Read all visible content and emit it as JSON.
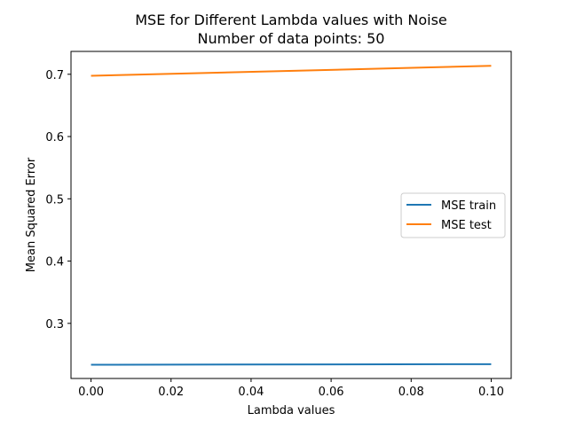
{
  "chart_data": {
    "type": "line",
    "title": "MSE for Different Lambda values with Noise",
    "subtitle": "Number of data points: 50",
    "xlabel": "Lambda values",
    "ylabel": "Mean Squared Error",
    "xlim": [
      -0.005,
      0.105
    ],
    "ylim": [
      0.2115,
      0.7367
    ],
    "xticks": [
      0.0,
      0.02,
      0.04,
      0.06,
      0.08,
      0.1
    ],
    "xtick_labels": [
      "0.00",
      "0.02",
      "0.04",
      "0.06",
      "0.08",
      "0.10"
    ],
    "yticks": [
      0.3,
      0.4,
      0.5,
      0.6,
      0.7
    ],
    "ytick_labels": [
      "0.3",
      "0.4",
      "0.5",
      "0.6",
      "0.7"
    ],
    "grid": false,
    "legend_position": "center-right",
    "series": [
      {
        "name": "MSE train",
        "color": "#1f77b4",
        "x": [
          0.0,
          0.1
        ],
        "y": [
          0.2335,
          0.2345
        ]
      },
      {
        "name": "MSE test",
        "color": "#ff7f0e",
        "x": [
          0.0,
          0.1
        ],
        "y": [
          0.6975,
          0.7135
        ]
      }
    ]
  }
}
